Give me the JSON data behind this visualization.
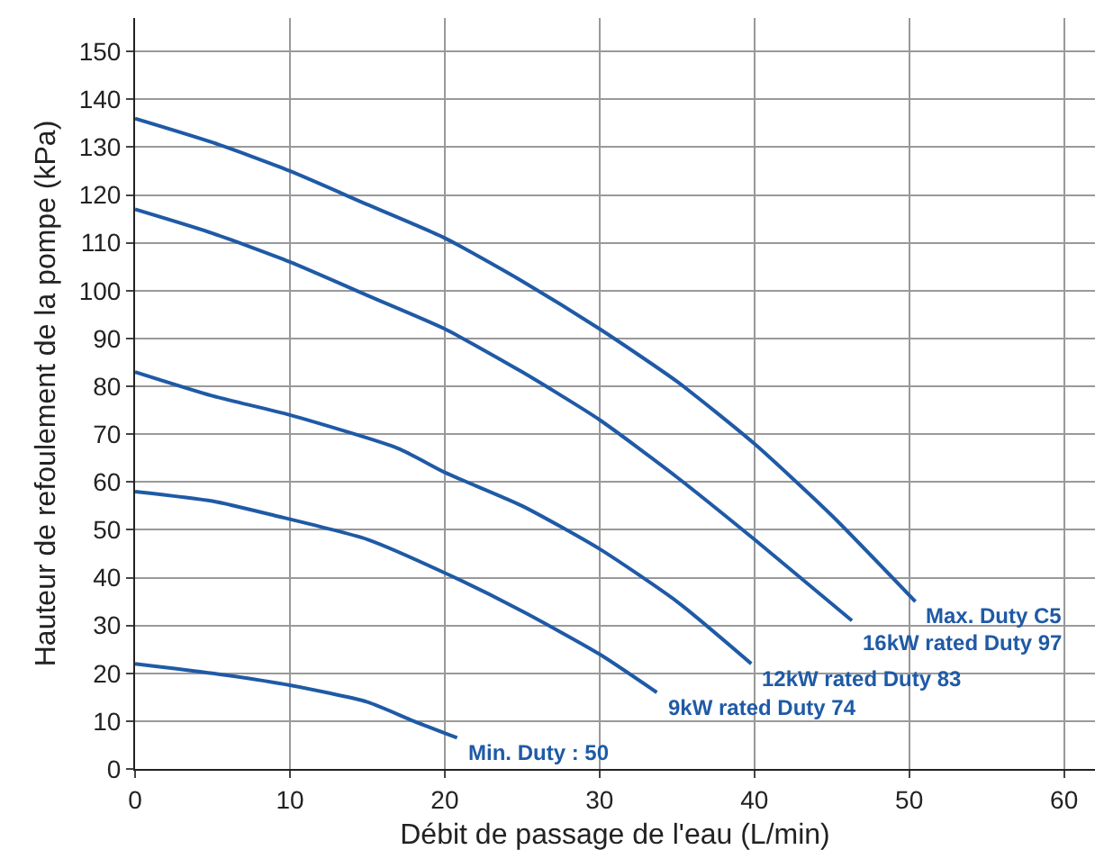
{
  "chart_data": {
    "type": "line",
    "xlabel": "Débit de passage de l'eau (L/min)",
    "ylabel": "Hauteur de refoulement de la pompe (kPa)",
    "xlim": [
      0,
      62
    ],
    "ylim": [
      0,
      157
    ],
    "xticks": [
      0,
      10,
      20,
      30,
      40,
      50,
      60
    ],
    "yticks": [
      0,
      10,
      20,
      30,
      40,
      50,
      60,
      70,
      80,
      90,
      100,
      110,
      120,
      130,
      140,
      150
    ],
    "grid": true,
    "legend": false,
    "marker": "none",
    "line_style": "solid",
    "series": [
      {
        "name": "Max. Duty C5",
        "color": "#1f5aa6",
        "x": [
          0,
          5,
          10,
          15,
          20,
          25,
          30,
          35,
          40,
          45,
          50.4
        ],
        "values": [
          136,
          131,
          125,
          118,
          111,
          102,
          92,
          81,
          68,
          53,
          35
        ]
      },
      {
        "name": "16kW rated Duty 97",
        "color": "#1f5aa6",
        "x": [
          0,
          5,
          10,
          15,
          20,
          25,
          30,
          35,
          40,
          46.3
        ],
        "values": [
          117,
          112,
          106,
          99,
          92,
          83,
          73,
          61,
          48,
          31
        ]
      },
      {
        "name": "12kW rated Duty 83",
        "color": "#1f5aa6",
        "x": [
          0,
          5,
          10,
          17,
          20,
          25,
          30,
          35,
          39.8
        ],
        "values": [
          83,
          78,
          74,
          67,
          62,
          55,
          46,
          35,
          22
        ]
      },
      {
        "name": "9kW rated Duty 74",
        "color": "#1f5aa6",
        "x": [
          0,
          5,
          9,
          15,
          20,
          25,
          30,
          33.7
        ],
        "values": [
          58,
          56,
          53,
          48,
          41,
          33,
          24,
          16
        ]
      },
      {
        "name": "Min. Duty : 50",
        "color": "#1f5aa6",
        "x": [
          0,
          5,
          10,
          15,
          18,
          20.8
        ],
        "values": [
          22,
          20,
          17.5,
          14,
          10,
          6.5
        ]
      }
    ]
  }
}
